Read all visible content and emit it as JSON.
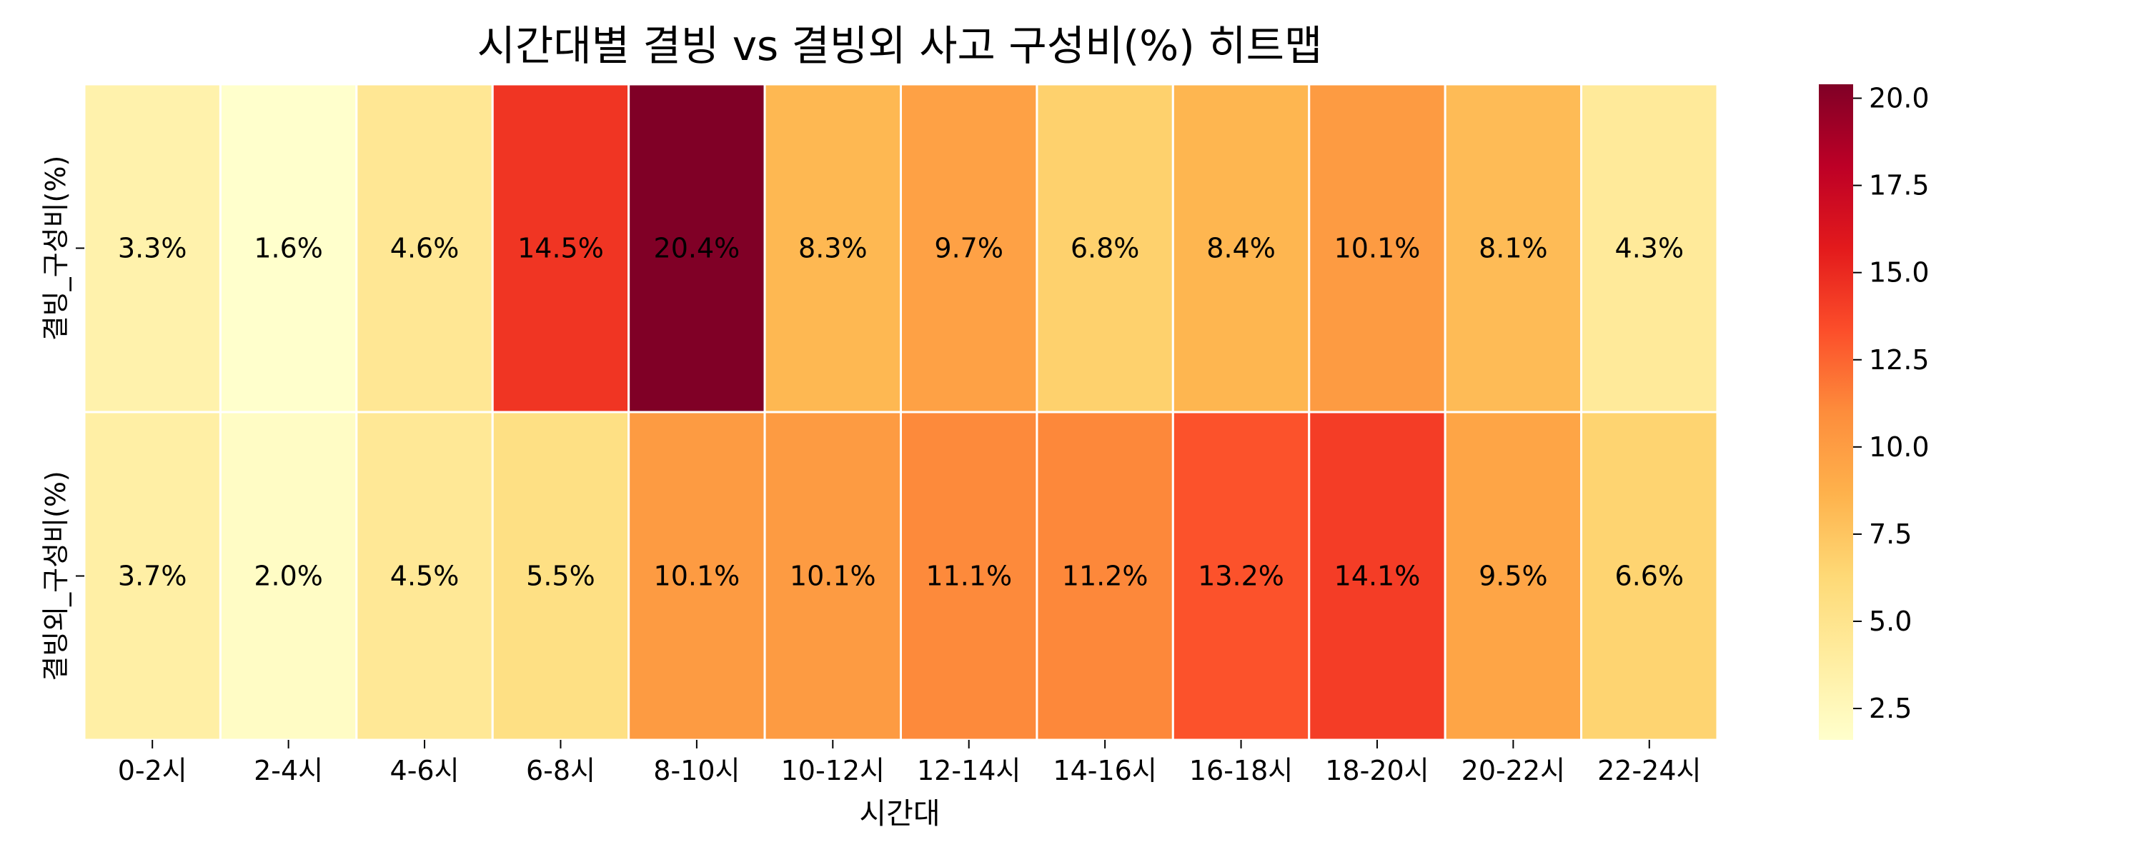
{
  "chart_data": {
    "type": "heatmap",
    "title": "시간대별 결빙 vs 결빙외 사고 구성비(%) 히트맵",
    "xlabel": "시간대",
    "ylabel": "",
    "x_categories": [
      "0-2시",
      "2-4시",
      "4-6시",
      "6-8시",
      "8-10시",
      "10-12시",
      "12-14시",
      "14-16시",
      "16-18시",
      "18-20시",
      "20-22시",
      "22-24시"
    ],
    "y_categories": [
      "결빙_구성비(%)",
      "결빙외_구성비(%)"
    ],
    "values": [
      [
        3.3,
        1.6,
        4.6,
        14.5,
        20.4,
        8.3,
        9.7,
        6.8,
        8.4,
        10.1,
        8.1,
        4.3
      ],
      [
        3.7,
        2.0,
        4.5,
        5.5,
        10.1,
        10.1,
        11.1,
        11.2,
        13.2,
        14.1,
        9.5,
        6.6
      ]
    ],
    "annotations": [
      [
        "3.3%",
        "1.6%",
        "4.6%",
        "14.5%",
        "20.4%",
        "8.3%",
        "9.7%",
        "6.8%",
        "8.4%",
        "10.1%",
        "8.1%",
        "4.3%"
      ],
      [
        "3.7%",
        "2.0%",
        "4.5%",
        "5.5%",
        "10.1%",
        "10.1%",
        "11.1%",
        "11.2%",
        "13.2%",
        "14.1%",
        "9.5%",
        "6.6%"
      ]
    ],
    "colormap": "YlOrRd",
    "colormap_stops": [
      "#ffffcc",
      "#ffeda0",
      "#fed976",
      "#feb24c",
      "#fd8d3c",
      "#fc4e2a",
      "#e31a1c",
      "#bd0026",
      "#800026"
    ],
    "vmin": 1.6,
    "vmax": 20.4,
    "colorbar_ticks": [
      2.5,
      5.0,
      7.5,
      10.0,
      12.5,
      15.0,
      17.5,
      20.0
    ],
    "colorbar_tick_labels": [
      "2.5",
      "5.0",
      "7.5",
      "10.0",
      "12.5",
      "15.0",
      "17.5",
      "20.0"
    ],
    "cell_border_color": "#ffffff"
  }
}
